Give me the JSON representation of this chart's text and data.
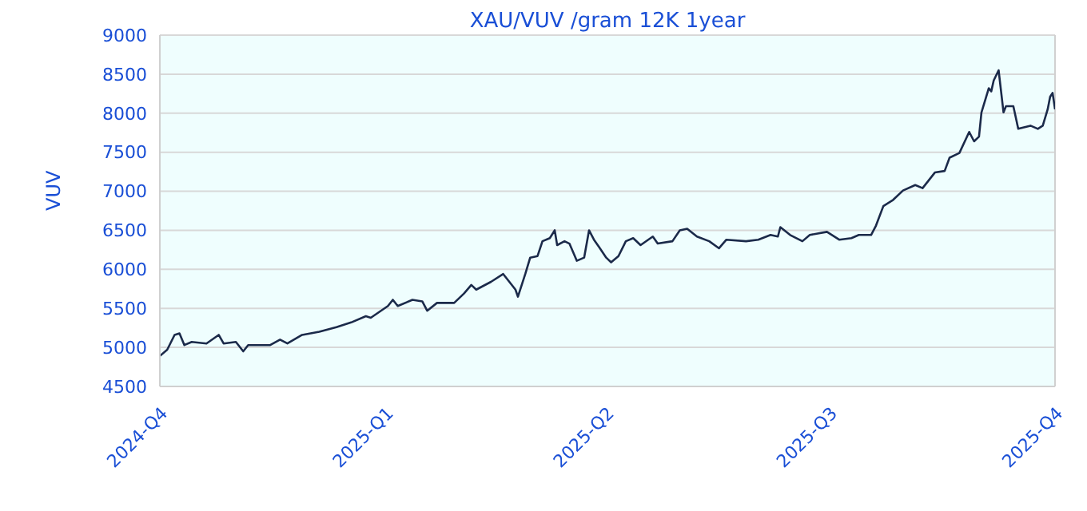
{
  "chart_data": {
    "type": "line",
    "title": "XAU/VUV /gram 12K 1year",
    "ylabel": "VUV",
    "xlim": [
      "2024-10-01",
      "2025-10-01"
    ],
    "xticks": [
      {
        "value": "2024-10-01",
        "label": "2024-Q4"
      },
      {
        "value": "2025-01-01",
        "label": "2025-Q1"
      },
      {
        "value": "2025-04-01",
        "label": "2025-Q2"
      },
      {
        "value": "2025-07-01",
        "label": "2025-Q3"
      },
      {
        "value": "2025-10-01",
        "label": "2025-Q4"
      }
    ],
    "ylim": [
      4500,
      9000
    ],
    "yticks": [
      4500,
      5000,
      5500,
      6000,
      6500,
      7000,
      7500,
      8000,
      8500,
      9000
    ],
    "grid": "y",
    "marker": "none",
    "line_style": "solid",
    "series": [
      {
        "color": "#1b2a4a",
        "x": [
          "2024-10-01",
          "2024-10-04",
          "2024-10-07",
          "2024-10-09",
          "2024-10-11",
          "2024-10-14",
          "2024-10-20",
          "2024-10-25",
          "2024-10-27",
          "2024-11-01",
          "2024-11-04",
          "2024-11-06",
          "2024-11-15",
          "2024-11-19",
          "2024-11-22",
          "2024-11-28",
          "2024-12-05",
          "2024-12-12",
          "2024-12-18",
          "2024-12-24",
          "2024-12-26",
          "2025-01-02",
          "2025-01-04",
          "2025-01-06",
          "2025-01-12",
          "2025-01-16",
          "2025-01-18",
          "2025-01-22",
          "2025-01-29",
          "2025-02-02",
          "2025-02-05",
          "2025-02-07",
          "2025-02-13",
          "2025-02-18",
          "2025-02-20",
          "2025-02-23",
          "2025-02-24",
          "2025-02-27",
          "2025-03-01",
          "2025-03-04",
          "2025-03-06",
          "2025-03-09",
          "2025-03-11",
          "2025-03-12",
          "2025-03-15",
          "2025-03-17",
          "2025-03-20",
          "2025-03-23",
          "2025-03-25",
          "2025-03-27",
          "2025-03-29",
          "2025-04-01",
          "2025-04-03",
          "2025-04-06",
          "2025-04-09",
          "2025-04-12",
          "2025-04-15",
          "2025-04-20",
          "2025-04-22",
          "2025-04-28",
          "2025-05-01",
          "2025-05-04",
          "2025-05-08",
          "2025-05-13",
          "2025-05-17",
          "2025-05-20",
          "2025-05-28",
          "2025-06-02",
          "2025-06-07",
          "2025-06-10",
          "2025-06-11",
          "2025-06-15",
          "2025-06-20",
          "2025-06-23",
          "2025-06-30",
          "2025-07-05",
          "2025-07-10",
          "2025-07-13",
          "2025-07-18",
          "2025-07-20",
          "2025-07-23",
          "2025-07-27",
          "2025-07-31",
          "2025-08-05",
          "2025-08-08",
          "2025-08-13",
          "2025-08-17",
          "2025-08-19",
          "2025-08-23",
          "2025-08-27",
          "2025-08-29",
          "2025-08-31",
          "2025-09-01",
          "2025-09-04",
          "2025-09-05",
          "2025-09-06",
          "2025-09-08",
          "2025-09-10",
          "2025-09-11",
          "2025-09-14",
          "2025-09-16",
          "2025-09-21",
          "2025-09-24",
          "2025-09-26",
          "2025-09-28",
          "2025-09-29",
          "2025-09-30",
          "2025-10-01"
        ],
        "values": [
          4890,
          4970,
          5160,
          5180,
          5030,
          5070,
          5050,
          5160,
          5050,
          5070,
          4950,
          5030,
          5030,
          5100,
          5050,
          5160,
          5200,
          5260,
          5320,
          5400,
          5380,
          5530,
          5610,
          5530,
          5610,
          5590,
          5470,
          5570,
          5570,
          5690,
          5800,
          5740,
          5840,
          5940,
          5860,
          5740,
          5650,
          5940,
          6150,
          6170,
          6360,
          6400,
          6500,
          6310,
          6360,
          6330,
          6110,
          6150,
          6500,
          6380,
          6290,
          6150,
          6090,
          6170,
          6360,
          6400,
          6310,
          6420,
          6330,
          6360,
          6500,
          6520,
          6420,
          6360,
          6270,
          6380,
          6360,
          6380,
          6440,
          6420,
          6540,
          6440,
          6360,
          6440,
          6480,
          6380,
          6400,
          6440,
          6440,
          6560,
          6810,
          6890,
          7010,
          7080,
          7040,
          7240,
          7260,
          7430,
          7490,
          7760,
          7640,
          7700,
          8010,
          8320,
          8280,
          8420,
          8550,
          8010,
          8090,
          8090,
          7800,
          7840,
          7800,
          7840,
          8050,
          8210,
          8260,
          8050
        ]
      }
    ]
  }
}
